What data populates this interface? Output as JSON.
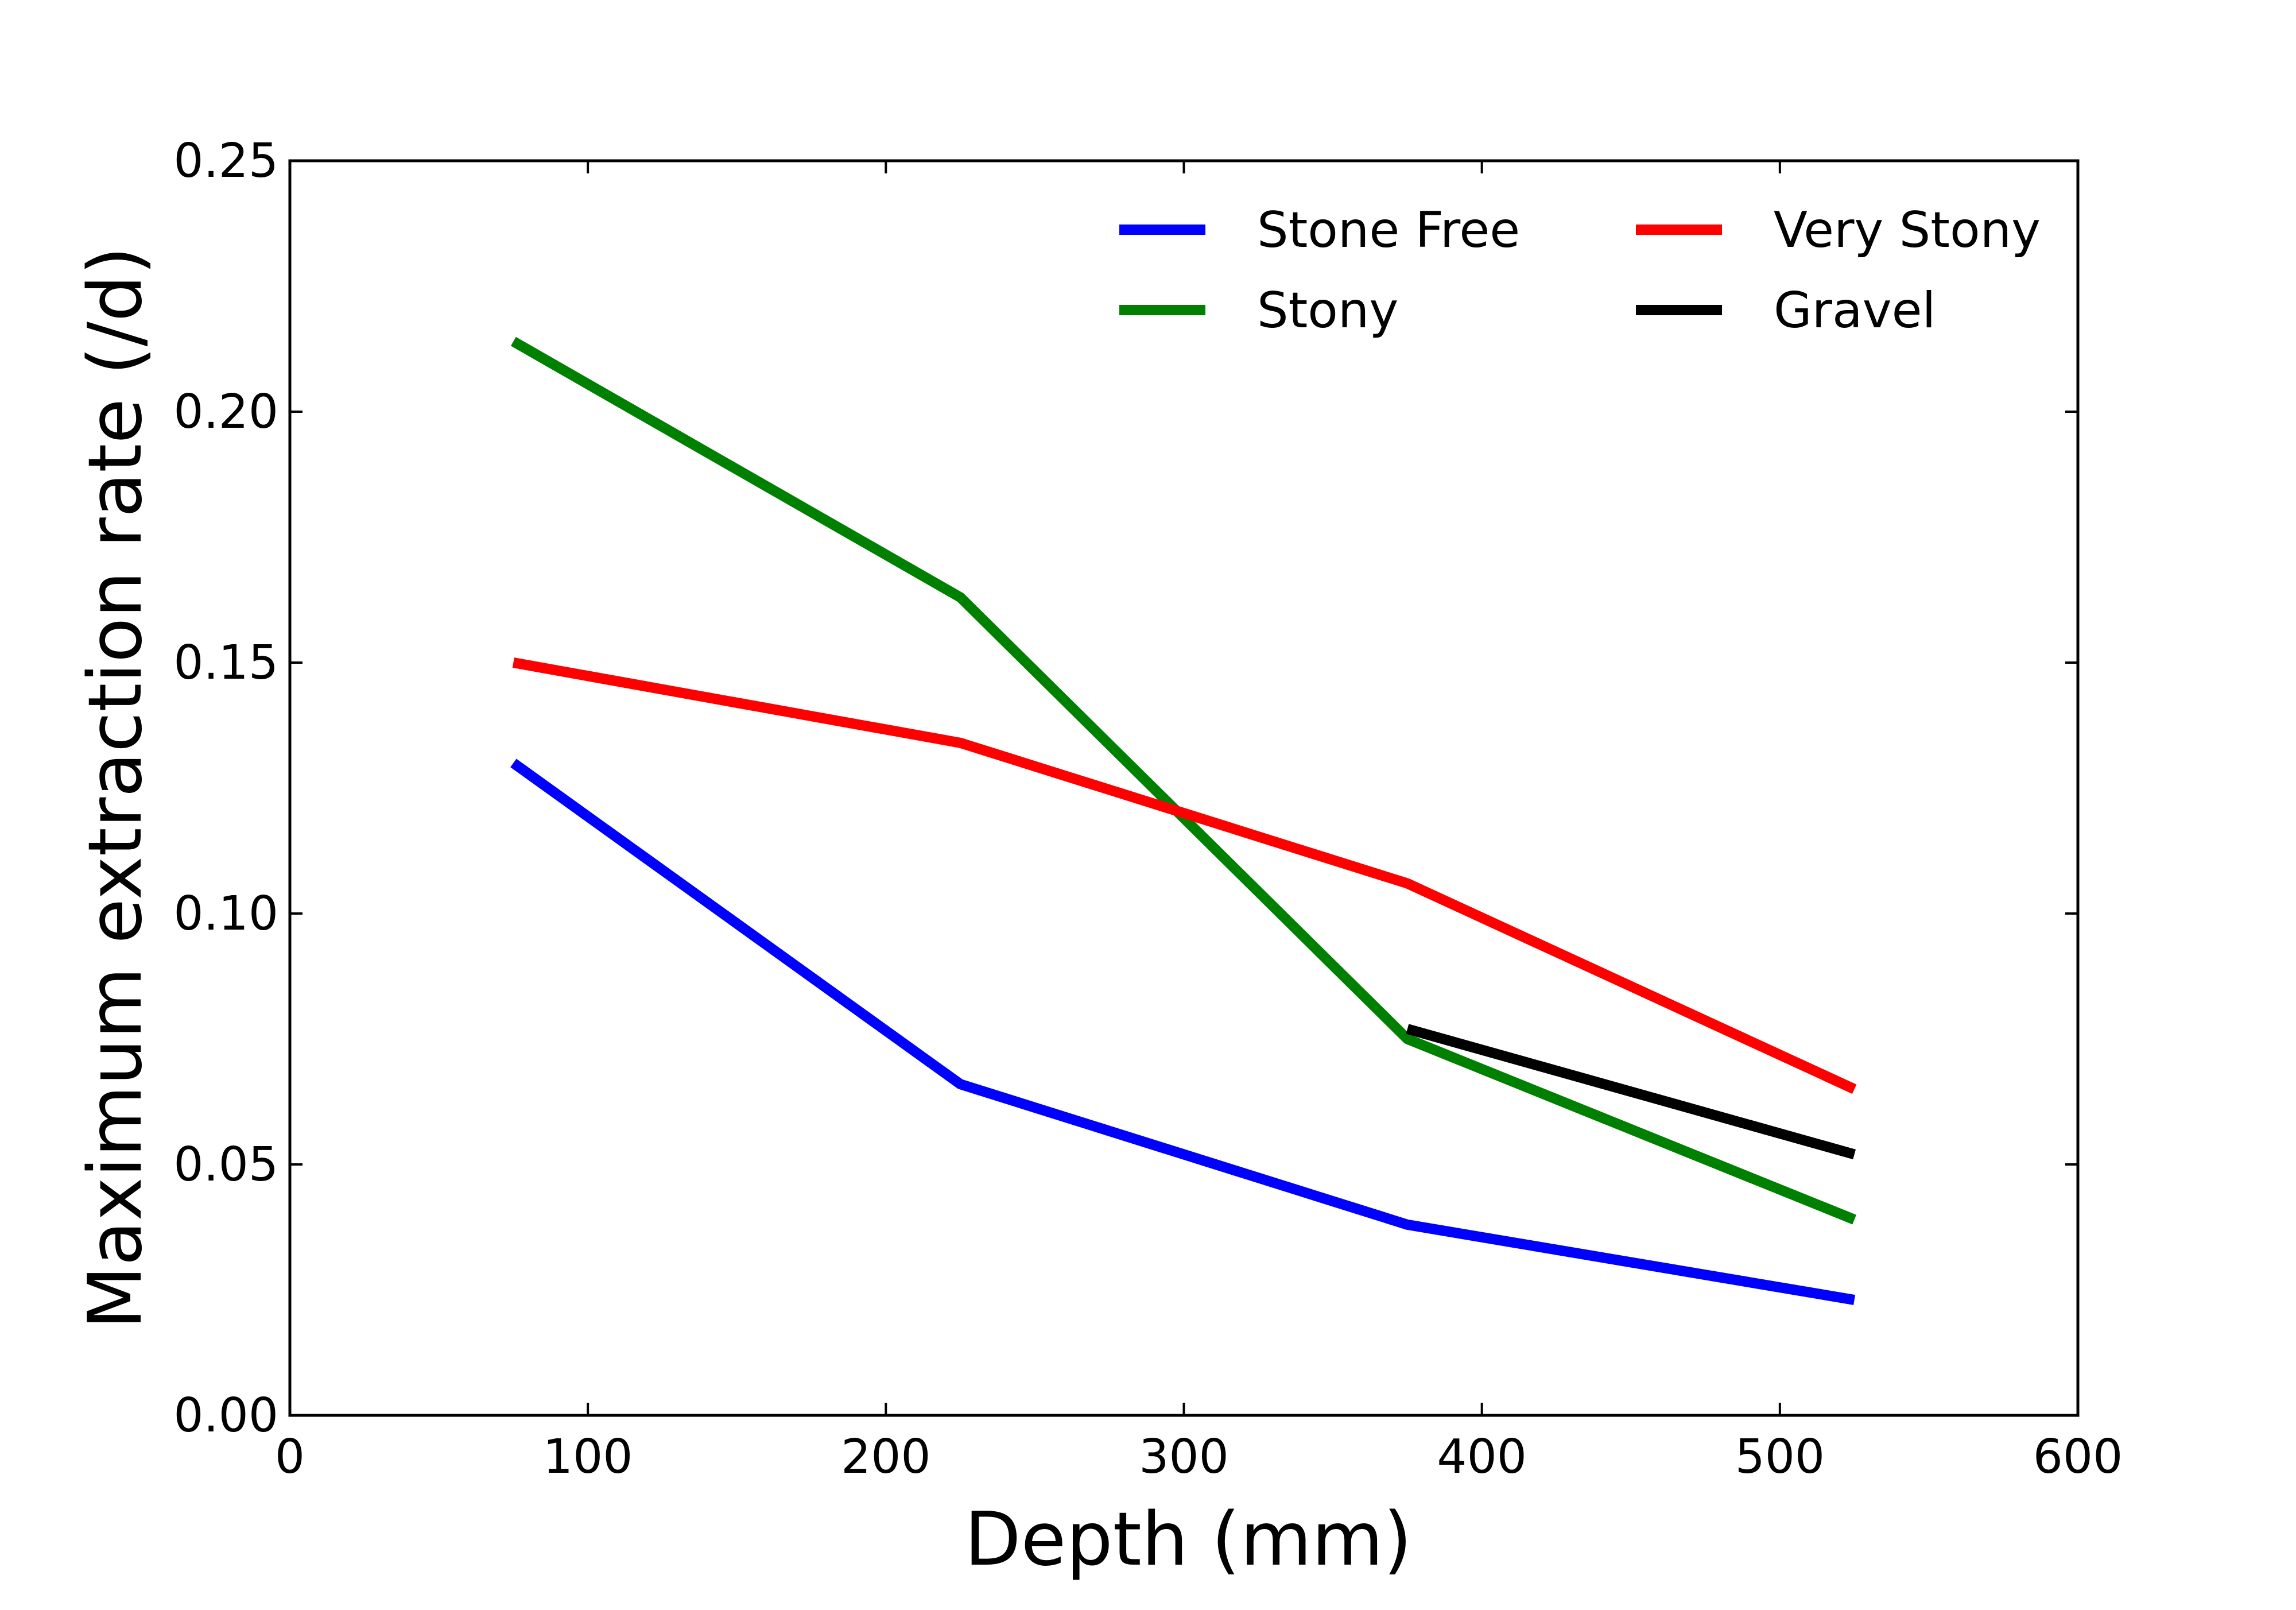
{
  "chart_data": {
    "type": "line",
    "title": "",
    "xlabel": "Depth (mm)",
    "ylabel": "Maximum extraction rate (/d)",
    "xlim": [
      0,
      600
    ],
    "ylim": [
      0,
      0.25
    ],
    "xticks": [
      "0",
      "100",
      "200",
      "300",
      "400",
      "500",
      "600"
    ],
    "yticks": [
      "0.00",
      "0.05",
      "0.10",
      "0.15",
      "0.20",
      "0.25"
    ],
    "grid": false,
    "legend_position": "top-right",
    "series": [
      {
        "name": "Stone Free",
        "color": "#0000ff",
        "x": [
          75,
          225,
          375,
          525
        ],
        "y": [
          0.13,
          0.066,
          0.038,
          0.023
        ]
      },
      {
        "name": "Stony",
        "color": "#008000",
        "x": [
          75,
          225,
          375,
          525
        ],
        "y": [
          0.214,
          0.163,
          0.075,
          0.039
        ]
      },
      {
        "name": "Very Stony",
        "color": "#ff0000",
        "x": [
          75,
          225,
          375,
          525
        ],
        "y": [
          0.15,
          0.134,
          0.106,
          0.065
        ]
      },
      {
        "name": "Gravel",
        "color": "#000000",
        "x": [
          375,
          525
        ],
        "y": [
          0.077,
          0.052
        ]
      }
    ]
  }
}
